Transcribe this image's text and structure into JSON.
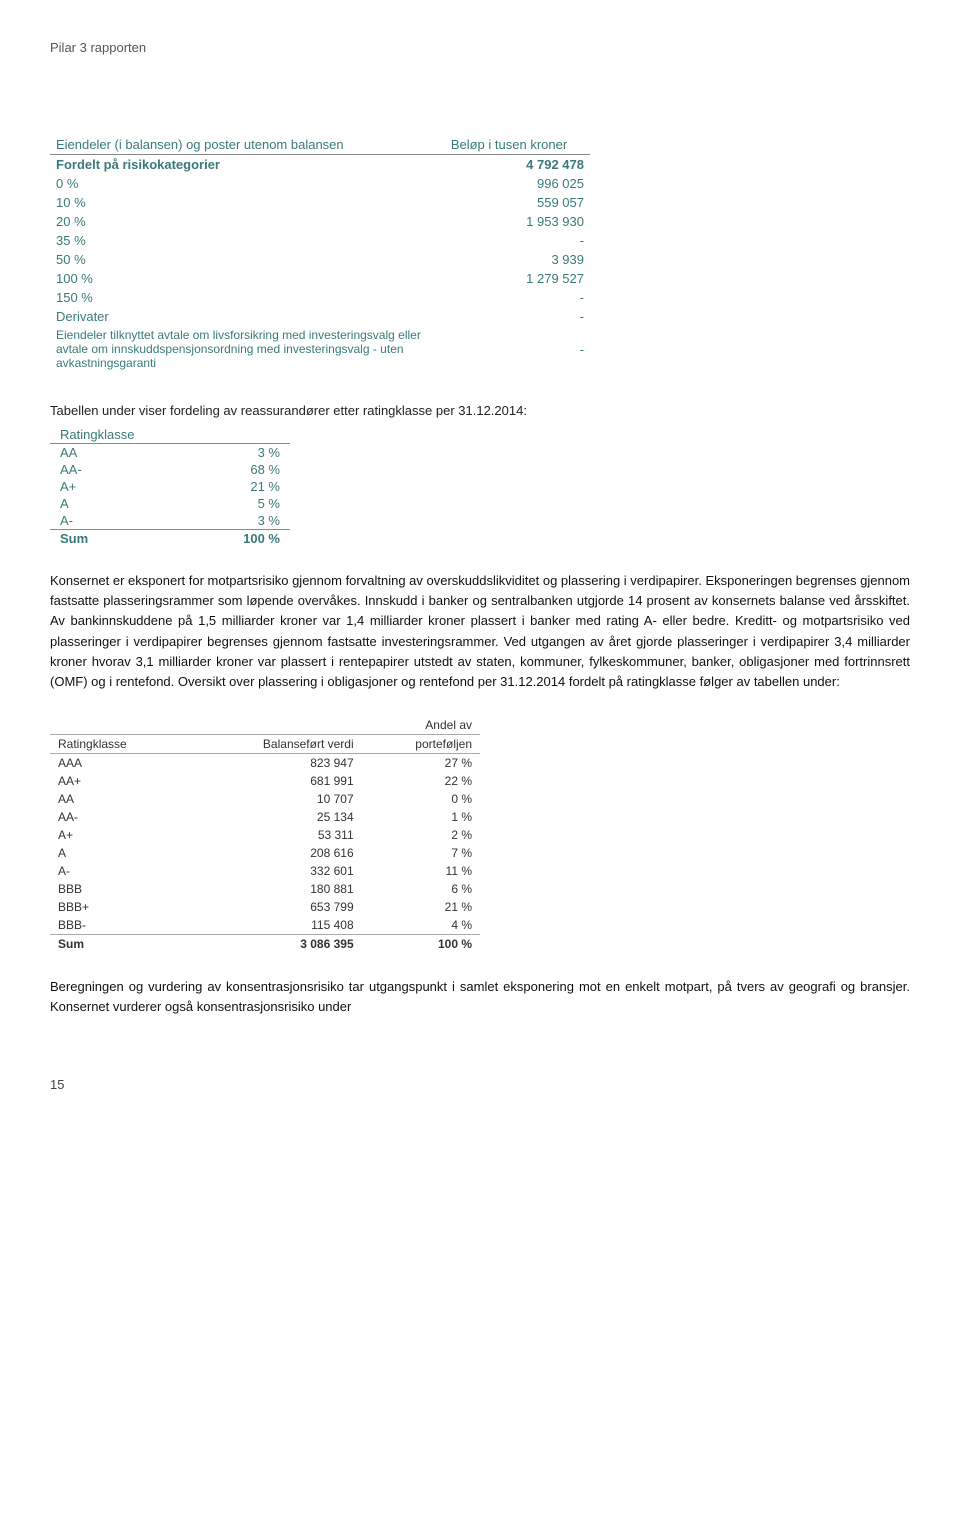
{
  "header": {
    "title": "Pilar 3 rapporten"
  },
  "table1": {
    "col1_header": "Eiendeler (i balansen) og poster utenom balansen",
    "col2_header": "Beløp i tusen kroner",
    "total_row": {
      "label": "Fordelt på risikokategorier",
      "value": "4 792 478"
    },
    "rows": [
      {
        "label": "0 %",
        "value": "996 025"
      },
      {
        "label": "10 %",
        "value": "559 057"
      },
      {
        "label": "20 %",
        "value": "1 953 930"
      },
      {
        "label": "35 %",
        "value": "-"
      },
      {
        "label": "50 %",
        "value": "3 939"
      },
      {
        "label": "100 %",
        "value": "1 279 527"
      },
      {
        "label": "150 %",
        "value": "-"
      },
      {
        "label": "Derivater",
        "value": "-"
      },
      {
        "label": "Eiendeler tilknyttet avtale om livsforsikring med investeringsvalg eller avtale om innskuddspensjonsordning med investeringsvalg - uten avkastningsgaranti",
        "value": "-"
      }
    ]
  },
  "narr1": "Tabellen under viser fordeling av reassurandører etter ratingklasse per 31.12.2014:",
  "table2": {
    "header": "Ratingklasse",
    "rows": [
      {
        "label": "AA",
        "value": "3 %"
      },
      {
        "label": "AA-",
        "value": "68 %"
      },
      {
        "label": "A+",
        "value": "21 %"
      },
      {
        "label": "A",
        "value": "5 %"
      },
      {
        "label": "A-",
        "value": "3 %"
      }
    ],
    "sum": {
      "label": "Sum",
      "value": "100 %"
    }
  },
  "para1": "Konsernet er eksponert for motpartsrisiko gjennom forvaltning av overskuddslikviditet og plassering i verdipapirer. Eksponeringen begrenses gjennom fastsatte plasseringsrammer som løpende overvåkes. Innskudd i banker og sentralbanken utgjorde 14 prosent av konsernets balanse ved årsskiftet. Av bankinnskuddene på 1,5 milliarder kroner var 1,4 milliarder kroner plassert i banker med rating A- eller bedre. Kreditt- og motpartsrisiko ved plasseringer i verdipapirer begrenses gjennom fastsatte investeringsrammer. Ved utgangen av året gjorde plasseringer i verdipapirer 3,4 milliarder kroner hvorav 3,1 milliarder kroner var plassert i rentepapirer utstedt av staten, kommuner, fylkeskommuner, banker, obligasjoner med fortrinnsrett (OMF) og i rentefond. Oversikt over plassering i obligasjoner og rentefond per 31.12.2014 fordelt på ratingklasse følger av tabellen under:",
  "table3": {
    "headers": {
      "c1": "Ratingklasse",
      "c2": "Balanseført verdi",
      "c3_line1": "Andel av",
      "c3_line2": "porteføljen"
    },
    "rows": [
      {
        "c1": "AAA",
        "c2": "823 947",
        "c3": "27 %"
      },
      {
        "c1": "AA+",
        "c2": "681 991",
        "c3": "22 %"
      },
      {
        "c1": "AA",
        "c2": "10 707",
        "c3": "0 %"
      },
      {
        "c1": "AA-",
        "c2": "25 134",
        "c3": "1 %"
      },
      {
        "c1": "A+",
        "c2": "53 311",
        "c3": "2 %"
      },
      {
        "c1": "A",
        "c2": "208 616",
        "c3": "7 %"
      },
      {
        "c1": "A-",
        "c2": "332 601",
        "c3": "11 %"
      },
      {
        "c1": "BBB",
        "c2": "180 881",
        "c3": "6 %"
      },
      {
        "c1": "BBB+",
        "c2": "653 799",
        "c3": "21 %"
      },
      {
        "c1": "BBB-",
        "c2": "115 408",
        "c3": "4 %"
      }
    ],
    "sum": {
      "c1": "Sum",
      "c2": "3 086 395",
      "c3": "100 %"
    }
  },
  "para2": "Beregningen og vurdering av konsentrasjonsrisiko tar utgangspunkt i samlet eksponering mot en enkelt motpart, på tvers av geografi og bransjer. Konsernet vurderer også konsentrasjonsrisiko under",
  "page": "15"
}
